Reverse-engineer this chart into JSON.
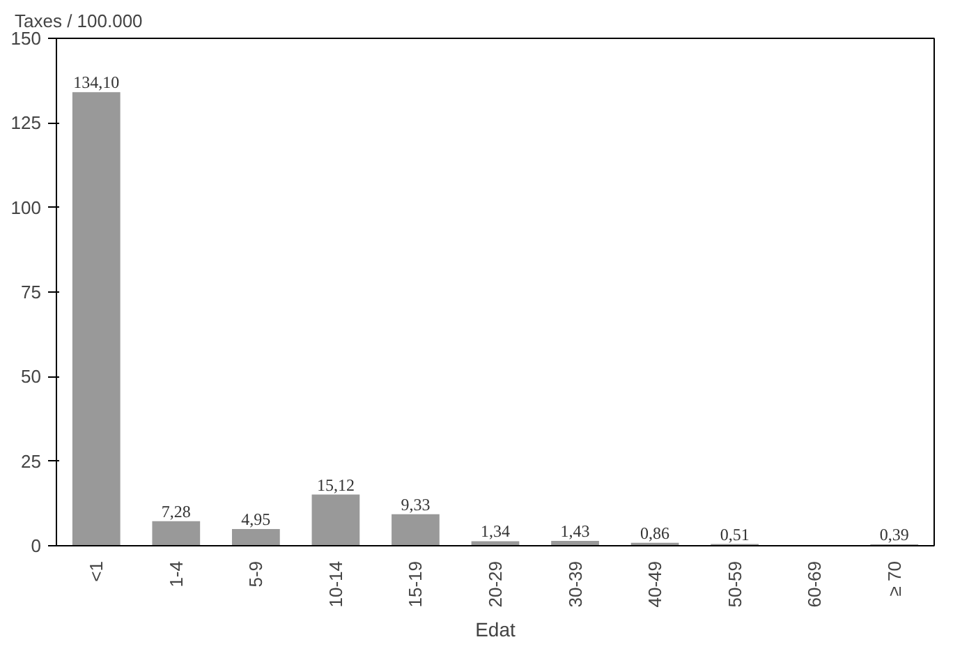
{
  "chart_data": {
    "type": "bar",
    "ylabel": "Taxes / 100.000",
    "xlabel": "Edat",
    "categories": [
      "<1",
      "1-4",
      "5-9",
      "10-14",
      "15-19",
      "20-29",
      "30-39",
      "40-49",
      "50-59",
      "60-69",
      "≥ 70"
    ],
    "values": [
      134.1,
      7.28,
      4.95,
      15.12,
      9.33,
      1.34,
      1.43,
      0.86,
      0.51,
      null,
      0.39
    ],
    "value_labels": [
      "134,10",
      "7,28",
      "4,95",
      "15,12",
      "9,33",
      "1,34",
      "1,43",
      "0,86",
      "0,51",
      null,
      "0,39"
    ],
    "color": "#999999",
    "ylim": [
      0,
      150
    ],
    "yticks": [
      0,
      25,
      50,
      75,
      100,
      125,
      150
    ],
    "grid": false
  }
}
